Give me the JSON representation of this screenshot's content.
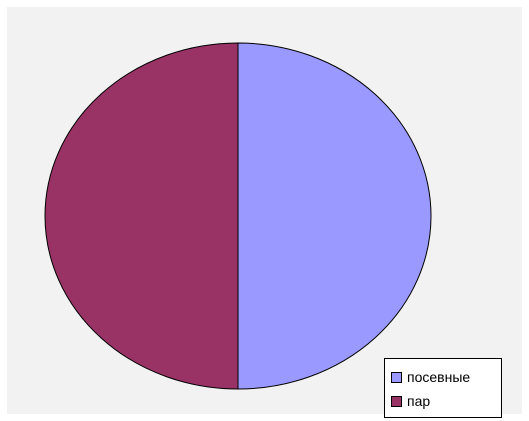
{
  "chart_data": {
    "type": "pie",
    "title": "",
    "slices": [
      {
        "label": "посевные",
        "value": 50,
        "color": "#9999ff"
      },
      {
        "label": "пар",
        "value": 50,
        "color": "#993366"
      }
    ],
    "start_angle_deg": 0,
    "direction": "clockwise",
    "legend_position": "bottom-right",
    "background": "#f2f2f2"
  }
}
